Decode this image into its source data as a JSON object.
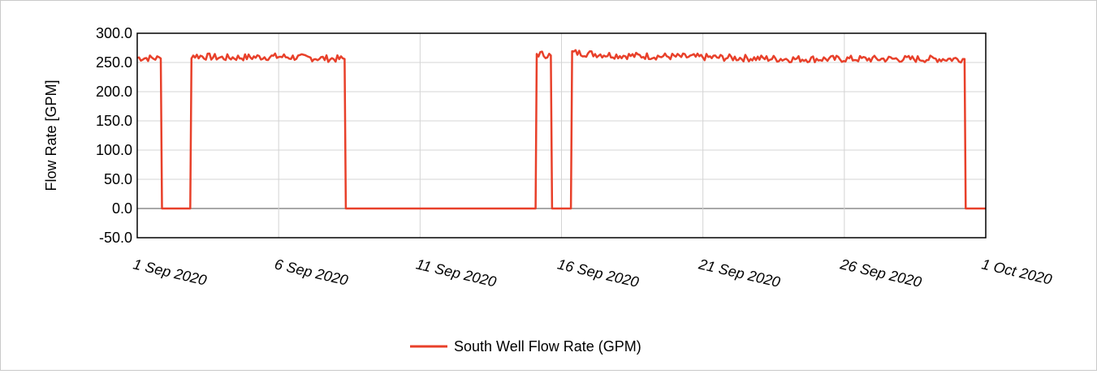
{
  "chart_data": {
    "type": "line",
    "ylabel": "Flow Rate [GPM]",
    "xlabel": "",
    "ylim": [
      -50,
      300
    ],
    "y_ticks": [
      "300.0",
      "250.0",
      "200.0",
      "150.0",
      "100.0",
      "50.0",
      "0.0",
      "-50.0"
    ],
    "y_tick_values": [
      300,
      250,
      200,
      150,
      100,
      50,
      0,
      -50
    ],
    "xlim": [
      "2020-09-01",
      "2020-10-01"
    ],
    "x_ticks": [
      "1 Sep 2020",
      "6 Sep 2020",
      "11 Sep 2020",
      "16 Sep 2020",
      "21 Sep 2020",
      "26 Sep 2020",
      "1 Oct 2020"
    ],
    "x_tick_dates": [
      "2020-09-01",
      "2020-09-06",
      "2020-09-11",
      "2020-09-16",
      "2020-09-21",
      "2020-09-26",
      "2020-10-01"
    ],
    "grid": true,
    "legend_position": "bottom",
    "series": [
      {
        "name": "South Well Flow Rate (GPM)",
        "color": "#e8402a",
        "points": [
          [
            "2020-09-01 00:00",
            258
          ],
          [
            "2020-09-01 20:00",
            257
          ],
          [
            "2020-09-01 21:00",
            0
          ],
          [
            "2020-09-02 21:00",
            0
          ],
          [
            "2020-09-02 22:00",
            262
          ],
          [
            "2020-09-04 00:00",
            258
          ],
          [
            "2020-09-06 00:00",
            260
          ],
          [
            "2020-09-07 12:00",
            257
          ],
          [
            "2020-09-08 08:00",
            256
          ],
          [
            "2020-09-08 09:00",
            0
          ],
          [
            "2020-09-15 02:00",
            0
          ],
          [
            "2020-09-15 03:00",
            265
          ],
          [
            "2020-09-15 15:00",
            262
          ],
          [
            "2020-09-15 16:00",
            0
          ],
          [
            "2020-09-16 08:00",
            0
          ],
          [
            "2020-09-16 09:00",
            267
          ],
          [
            "2020-09-18 00:00",
            262
          ],
          [
            "2020-09-21 00:00",
            259
          ],
          [
            "2020-09-24 00:00",
            256
          ],
          [
            "2020-09-27 00:00",
            256
          ],
          [
            "2020-09-30 06:00",
            256
          ],
          [
            "2020-09-30 07:00",
            0
          ],
          [
            "2020-10-01 00:00",
            0
          ]
        ]
      }
    ]
  }
}
